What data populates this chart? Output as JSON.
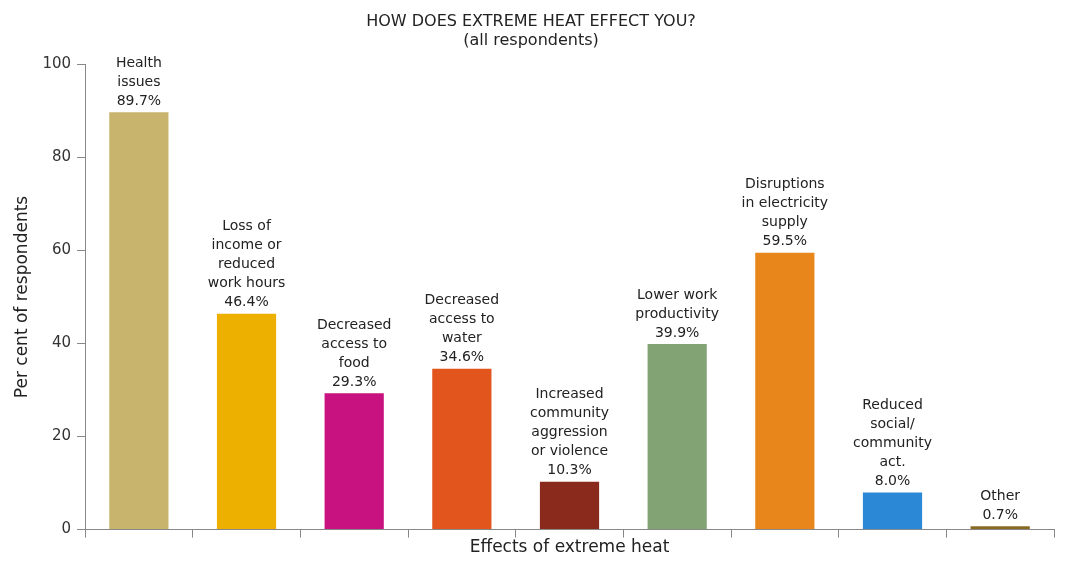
{
  "chart_data": {
    "type": "bar",
    "title": "HOW DOES EXTREME HEAT EFFECT YOU?",
    "subtitle": "(all respondents)",
    "xlabel": "Effects of extreme heat",
    "ylabel": "Per cent of respondents",
    "categories": [
      "Health issues",
      "Loss of income or reduced work hours",
      "Decreased access to food",
      "Decreased access to water",
      "Increased community aggression or violence",
      "Lower work productivity",
      "Disruptions in electricity supply",
      "Reduced social/ community act.",
      "Other"
    ],
    "values": [
      89.7,
      46.4,
      29.3,
      34.6,
      10.3,
      39.9,
      59.5,
      8.0,
      0.7
    ],
    "value_labels": [
      "89.7%",
      "46.4%",
      "29.3%",
      "34.6%",
      "10.3%",
      "39.9%",
      "59.5%",
      "8.0%",
      "0.7%"
    ],
    "colors": [
      "#c9b46e",
      "#eeb000",
      "#c8127f",
      "#e2561e",
      "#8a2a1c",
      "#82a474",
      "#e8861c",
      "#2a88d6",
      "#8a6a22"
    ],
    "ylim": [
      0,
      100
    ],
    "yticks": [
      0,
      20,
      40,
      60,
      80,
      100
    ],
    "grid": false,
    "legend": false,
    "tick_labels": "y"
  }
}
